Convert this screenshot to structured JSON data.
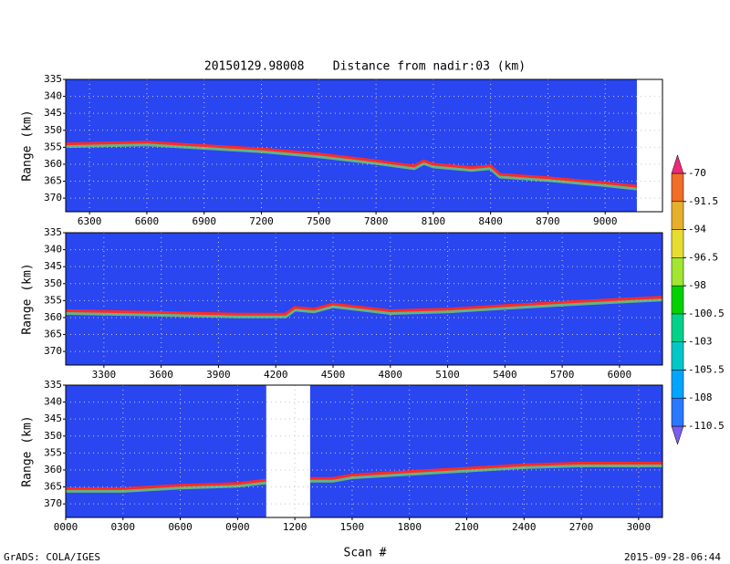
{
  "title": "20150129.98008    Distance from nadir:03 (km)",
  "xlabel": "Scan #",
  "footer_left": "GrADS: COLA/IGES",
  "footer_right": "2015-09-28-06:44",
  "colorbar": {
    "levels": [
      -110.5,
      -108,
      -105.5,
      -103,
      -100.5,
      -98,
      -96.5,
      -94,
      -91.5,
      -70
    ],
    "colors": [
      "#7a5cf0",
      "#2a78ff",
      "#00a5ff",
      "#00c8c8",
      "#00d28c",
      "#00d200",
      "#a0e632",
      "#e6dc32",
      "#e6af2d",
      "#f06e28",
      "#f0287a"
    ]
  },
  "chart_data": [
    {
      "type": "line",
      "ylabel": "Range (km)",
      "color": "#ff2a2a",
      "background": "#2a46f0",
      "grid": true,
      "xlim": [
        6175,
        9300
      ],
      "xticks": [
        6300,
        6600,
        6900,
        7200,
        7500,
        7800,
        8100,
        8400,
        8700,
        9000
      ],
      "ylim": [
        335,
        374
      ],
      "yticks": [
        335,
        340,
        345,
        350,
        355,
        360,
        365,
        370
      ],
      "x": [
        6175,
        6600,
        6900,
        7200,
        7500,
        7800,
        8000,
        8050,
        8100,
        8300,
        8400,
        8450,
        8700,
        9000,
        9166
      ],
      "values": [
        354,
        353.5,
        354.5,
        355.5,
        357,
        359,
        360.5,
        359,
        360,
        361,
        360.5,
        363,
        364,
        365.5,
        366.5
      ]
    },
    {
      "type": "line",
      "ylabel": "Range (km)",
      "color": "#ff2a2a",
      "background": "#2a46f0",
      "grid": true,
      "xlim": [
        3100,
        6225
      ],
      "xticks": [
        3300,
        3600,
        3900,
        4200,
        4500,
        4800,
        5100,
        5400,
        5700,
        6000
      ],
      "ylim": [
        335,
        374
      ],
      "yticks": [
        335,
        340,
        345,
        350,
        355,
        360,
        365,
        370
      ],
      "x": [
        3100,
        3600,
        4000,
        4250,
        4300,
        4400,
        4500,
        4800,
        5100,
        5400,
        5700,
        6225
      ],
      "values": [
        358,
        358.5,
        359,
        359,
        357,
        357.5,
        356,
        358,
        357.5,
        356.5,
        355.5,
        354
      ]
    },
    {
      "type": "line",
      "ylabel": "Range (km)",
      "color": "#ff2a2a",
      "background": "#2a46f0",
      "grid": true,
      "xlim": [
        0,
        3125
      ],
      "xticks": [
        {
          "value": 0,
          "label": "0000"
        },
        {
          "value": 300,
          "label": "0300"
        },
        {
          "value": 600,
          "label": "0600"
        },
        {
          "value": 900,
          "label": "0900"
        },
        1200,
        1500,
        1800,
        2100,
        2400,
        2700,
        3000
      ],
      "ylim": [
        335,
        374
      ],
      "yticks": [
        335,
        340,
        345,
        350,
        355,
        360,
        365,
        370
      ],
      "x": [
        0,
        300,
        600,
        900,
        1050,
        1150,
        1280,
        1400,
        1500,
        1800,
        2100,
        2400,
        2700,
        3125
      ],
      "values": [
        365.5,
        365.5,
        364.5,
        364,
        363,
        null,
        362.5,
        362.5,
        361.5,
        360.5,
        359.5,
        358.5,
        358,
        358
      ]
    }
  ]
}
